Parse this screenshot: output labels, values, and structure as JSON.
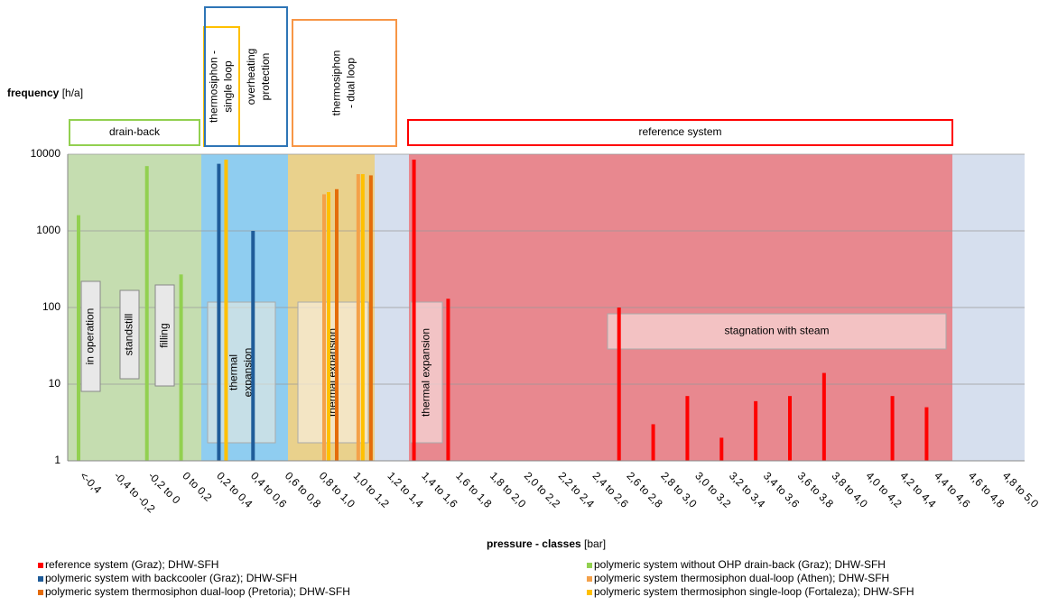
{
  "chart_data": {
    "type": "bar",
    "y_label": "frequency",
    "y_unit": "[h/a]",
    "x_label": "pressure - classes",
    "x_unit": "[bar]",
    "log_scale": true,
    "grid": true,
    "ylim": [
      1,
      10000
    ],
    "yticks": [
      1,
      10,
      100,
      1000,
      10000
    ],
    "categories": [
      "<-0,4",
      "-0,4 to -0,2",
      "-0,2 to 0",
      "0 to 0,2",
      "0,2 to 0,4",
      "0,4 to 0,6",
      "0,6 to 0,8",
      "0,8 to 1,0",
      "1,0 to 1,2",
      "1,2 to 1,4",
      "1,4 to 1,6",
      "1,6 to 1,8",
      "1,8 to 2,0",
      "2,0 to 2,2",
      "2,2 to 2,4",
      "2,4 to 2,6",
      "2,6 to 2,8",
      "2,8 to 3,0",
      "3,0 to 3,2",
      "3,2 to 3,4",
      "3,4 to 3,6",
      "3,6 to 3,8",
      "3,8 to 4,0",
      "4,0 to 4,2",
      "4,2 to 4,4",
      "4,4 to 4,6",
      "4,6 to 4,8",
      "4,8 to 5,0"
    ],
    "series": [
      {
        "name": "reference system (Graz); DHW-SFH",
        "color": "#ff0000",
        "values": [
          null,
          null,
          null,
          null,
          null,
          null,
          null,
          null,
          null,
          null,
          8500,
          130,
          null,
          null,
          null,
          null,
          100,
          3,
          7,
          2,
          6,
          7,
          14,
          null,
          7,
          5,
          null,
          null
        ]
      },
      {
        "name": "polymeric system with backcooler (Graz); DHW-SFH",
        "color": "#1f5c99",
        "values": [
          null,
          null,
          null,
          null,
          7500,
          1000,
          null,
          null,
          null,
          null,
          null,
          null,
          null,
          null,
          null,
          null,
          null,
          null,
          null,
          null,
          null,
          null,
          null,
          null,
          null,
          null,
          null,
          null
        ]
      },
      {
        "name": "polymeric system thermosiphon dual-loop (Pretoria); DHW-SFH",
        "color": "#e46c0a",
        "values": [
          null,
          null,
          null,
          null,
          null,
          null,
          null,
          3500,
          5300,
          null,
          null,
          null,
          null,
          null,
          null,
          null,
          null,
          null,
          null,
          null,
          null,
          null,
          null,
          null,
          null,
          null,
          null,
          null
        ]
      },
      {
        "name": "polymeric system without OHP drain-back (Graz); DHW-SFH",
        "color": "#92d050",
        "values": [
          1600,
          null,
          7000,
          270,
          null,
          null,
          null,
          null,
          null,
          null,
          null,
          null,
          null,
          null,
          null,
          null,
          null,
          null,
          null,
          null,
          null,
          null,
          null,
          null,
          null,
          null,
          null,
          null
        ]
      },
      {
        "name": "polymeric system thermosiphon dual-loop (Athen); DHW-SFH",
        "color": "#f4a14a",
        "values": [
          null,
          null,
          null,
          null,
          null,
          null,
          null,
          3000,
          5500,
          null,
          null,
          null,
          null,
          null,
          null,
          null,
          null,
          null,
          null,
          null,
          null,
          null,
          null,
          null,
          null,
          null,
          null,
          null
        ]
      },
      {
        "name": "polymeric system thermosiphon single-loop (Fortaleza); DHW-SFH",
        "color": "#ffc000",
        "values": [
          null,
          null,
          null,
          null,
          8500,
          null,
          null,
          3200,
          5500,
          null,
          null,
          null,
          null,
          null,
          null,
          null,
          null,
          null,
          null,
          null,
          null,
          null,
          null,
          null,
          null,
          null,
          null,
          null
        ]
      }
    ],
    "annotations": [
      {
        "lines": [
          "drain-back"
        ]
      },
      {
        "lines": [
          "thermosiphon -",
          "single loop"
        ]
      },
      {
        "lines": [
          "overheating",
          "protection"
        ]
      },
      {
        "lines": [
          "thermosiphon",
          "- dual loop"
        ]
      },
      {
        "lines": [
          "reference system"
        ]
      },
      {
        "lines": [
          "in operation"
        ]
      },
      {
        "lines": [
          "standstill"
        ]
      },
      {
        "lines": [
          "filling"
        ]
      },
      {
        "lines": [
          "thermal",
          "expansion"
        ]
      },
      {
        "lines": [
          "thermal expansion"
        ]
      },
      {
        "lines": [
          "thermal expansion"
        ]
      },
      {
        "lines": [
          "stagnation with steam"
        ]
      }
    ]
  }
}
